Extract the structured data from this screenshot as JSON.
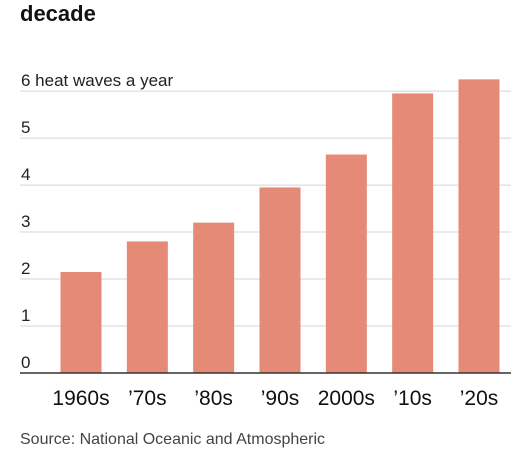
{
  "chart_data": {
    "type": "bar",
    "title": "decade",
    "y_unit_label": "heat waves a year",
    "categories": [
      "1960s",
      "’70s",
      "’80s",
      "’90s",
      "2000s",
      "’10s",
      "’20s"
    ],
    "values": [
      2.15,
      2.8,
      3.2,
      3.95,
      4.65,
      5.95,
      6.25
    ],
    "ylim": [
      0,
      6.3
    ],
    "y_ticks": [
      0,
      1,
      2,
      3,
      4,
      5,
      6
    ],
    "grid": true,
    "bar_color": "#e68a78",
    "grid_color": "#d4d4d4",
    "axis_color": "#333333"
  },
  "source_text": "Source: National Oceanic and Atmospheric"
}
